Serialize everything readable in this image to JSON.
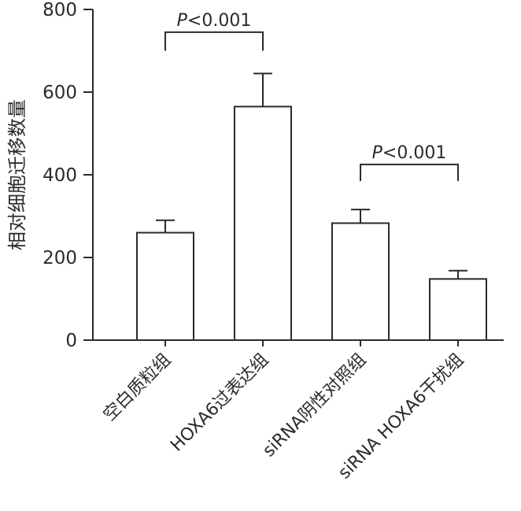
{
  "chart_data": {
    "type": "bar",
    "categories": [
      "空白质粒组",
      "HOXA6过表达组",
      "siRNA阴性对照组",
      "siRNA HOXA6干扰组"
    ],
    "values": [
      260,
      565,
      283,
      148
    ],
    "errors": [
      30,
      80,
      33,
      20
    ],
    "title": "",
    "xlabel": "",
    "ylabel": "相对细胞迁移数量",
    "ylim": [
      0,
      800
    ],
    "yticks": [
      0,
      200,
      400,
      600,
      800
    ],
    "grid": false,
    "legend": "none",
    "bar_fill": "#ffffff",
    "bar_stroke": "#2b2b2b",
    "annotations": [
      {
        "label_italic": "P",
        "label_rest": "<0.001",
        "from": 0,
        "to": 1,
        "y": 745,
        "drop": 45
      },
      {
        "label_italic": "P",
        "label_rest": "<0.001",
        "from": 2,
        "to": 3,
        "y": 425,
        "drop": 40
      }
    ]
  },
  "colors": {
    "axis": "#2b2b2b",
    "text": "#2b2b2b",
    "background": "#ffffff"
  }
}
